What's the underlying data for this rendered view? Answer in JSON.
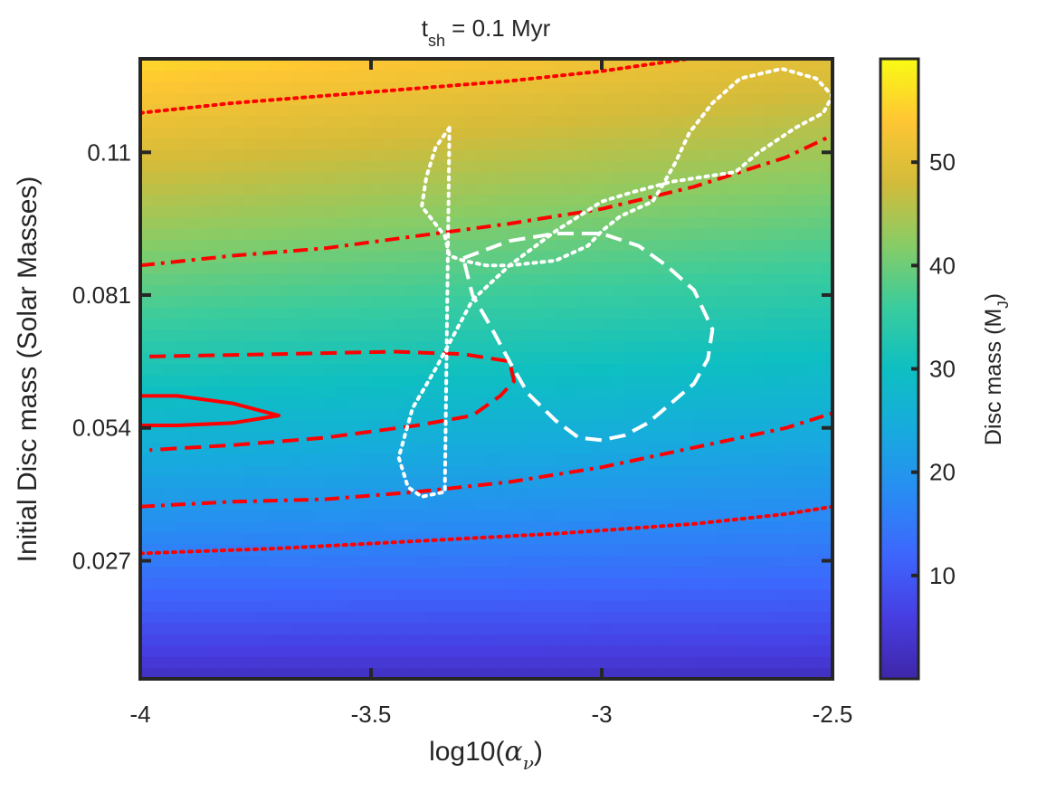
{
  "chart_data": {
    "type": "heatmap",
    "title": "t_sh = 0.1 Myr",
    "title_parts": {
      "main": "t",
      "sub": "sh",
      "rest": " = 0.1 Myr"
    },
    "xlabel": "log10(α_ν)",
    "xlabel_parts": {
      "pre": "log10(",
      "greek": "α",
      "sub": "ν",
      "post": ")"
    },
    "ylabel": "Initial Disc mass (Solar Masses)",
    "xlim": [
      -4,
      -2.5
    ],
    "ylim": [
      0.003,
      0.129
    ],
    "xticks": [
      -4,
      -3.5,
      -3,
      -2.5
    ],
    "xtick_labels": [
      "-4",
      "-3.5",
      "-3",
      "-2.5"
    ],
    "yticks": [
      0.027,
      0.054,
      0.081,
      0.11
    ],
    "ytick_labels": [
      "0.027",
      "0.054",
      "0.081",
      "0.11"
    ],
    "colorbar": {
      "label": "Disc mass (M_J)",
      "label_parts": {
        "main": "Disc mass (M",
        "sub": "J",
        "post": ")"
      },
      "range": [
        0,
        60
      ],
      "ticks": [
        10,
        20,
        30,
        40,
        50
      ],
      "tick_labels": [
        "10",
        "20",
        "30",
        "40",
        "50"
      ],
      "colormap": "parula"
    },
    "field_model": "disc mass rises with initial disc mass and falls slightly toward higher alpha; about 50-56 M_J at top-left, 5 M_J at bottom",
    "contours": [
      {
        "name": "red-dotted-upper",
        "color": "#ff0000",
        "style": "dotted",
        "x": [
          -4,
          -3.8,
          -3.6,
          -3.4,
          -3.2,
          -3.0,
          -2.85,
          -2.7,
          -2.6
        ],
        "y": [
          0.118,
          0.12,
          0.1215,
          0.123,
          0.1245,
          0.1265,
          0.1285,
          0.1305,
          0.132
        ]
      },
      {
        "name": "red-dashdot-upper",
        "color": "#ff0000",
        "style": "dashdot",
        "x": [
          -4,
          -3.8,
          -3.6,
          -3.4,
          -3.2,
          -3.0,
          -2.8,
          -2.6,
          -2.5
        ],
        "y": [
          0.087,
          0.089,
          0.0905,
          0.093,
          0.0955,
          0.0985,
          0.103,
          0.109,
          0.1135
        ]
      },
      {
        "name": "red-solid",
        "color": "#ff0000",
        "style": "solid",
        "x": [
          -4,
          -3.92,
          -3.8,
          -3.7,
          -3.8,
          -3.92,
          -4
        ],
        "y": [
          0.0605,
          0.0605,
          0.059,
          0.0565,
          0.055,
          0.0545,
          0.0545
        ]
      },
      {
        "name": "red-dashed",
        "color": "#ff0000",
        "style": "dashed",
        "x": [
          -3.98,
          -3.7,
          -3.45,
          -3.3,
          -3.2,
          -3.19,
          -3.22,
          -3.28,
          -3.4,
          -3.6,
          -3.8,
          -3.98
        ],
        "y": [
          0.0685,
          0.069,
          0.0695,
          0.069,
          0.0675,
          0.0635,
          0.0605,
          0.0565,
          0.0545,
          0.052,
          0.0505,
          0.0495
        ]
      },
      {
        "name": "red-dashdot-lower",
        "color": "#ff0000",
        "style": "dashdot",
        "x": [
          -4,
          -3.8,
          -3.6,
          -3.4,
          -3.2,
          -3.0,
          -2.8,
          -2.6,
          -2.5
        ],
        "y": [
          0.038,
          0.039,
          0.0395,
          0.041,
          0.043,
          0.046,
          0.05,
          0.054,
          0.057
        ]
      },
      {
        "name": "red-dotted-lower",
        "color": "#ff0000",
        "style": "dotted",
        "x": [
          -4,
          -3.7,
          -3.4,
          -3.1,
          -2.8,
          -2.6,
          -2.5
        ],
        "y": [
          0.0285,
          0.0295,
          0.031,
          0.0325,
          0.0345,
          0.0365,
          0.038
        ]
      },
      {
        "name": "white-dotted",
        "color": "#ffffff",
        "style": "dotted",
        "x": [
          -3.33,
          -3.36,
          -3.38,
          -3.39,
          -3.34,
          -3.33,
          -3.3,
          -3.25,
          -3.2,
          -3.1,
          -3.03,
          -3.0,
          -2.96,
          -2.89,
          -2.87,
          -2.84,
          -2.81,
          -2.76,
          -2.7,
          -2.61,
          -2.535,
          -2.5,
          -2.52,
          -2.58,
          -2.66,
          -2.71,
          -2.85,
          -2.93,
          -3.0,
          -3.1,
          -3.2,
          -3.28,
          -3.32,
          -3.36,
          -3.41,
          -3.44,
          -3.42,
          -3.39,
          -3.34,
          -3.33
        ],
        "y": [
          0.115,
          0.111,
          0.105,
          0.099,
          0.093,
          0.089,
          0.088,
          0.087,
          0.087,
          0.088,
          0.091,
          0.094,
          0.097,
          0.1,
          0.103,
          0.108,
          0.114,
          0.12,
          0.125,
          0.127,
          0.125,
          0.1215,
          0.118,
          0.115,
          0.11,
          0.106,
          0.104,
          0.102,
          0.1,
          0.094,
          0.087,
          0.08,
          0.073,
          0.066,
          0.058,
          0.048,
          0.042,
          0.04,
          0.041,
          0.115
        ]
      },
      {
        "name": "white-dashed",
        "color": "#ffffff",
        "style": "dashed",
        "x": [
          -3.3,
          -3.2,
          -3.1,
          -3.0,
          -2.92,
          -2.86,
          -2.8,
          -2.76,
          -2.77,
          -2.8,
          -2.85,
          -2.9,
          -2.95,
          -3.0,
          -3.05,
          -3.1,
          -3.16,
          -3.2,
          -3.24,
          -3.28,
          -3.3
        ],
        "y": [
          0.0885,
          0.092,
          0.0935,
          0.0935,
          0.091,
          0.087,
          0.082,
          0.074,
          0.068,
          0.063,
          0.059,
          0.055,
          0.0525,
          0.0515,
          0.052,
          0.0555,
          0.061,
          0.0675,
          0.0745,
          0.081,
          0.0885
        ]
      }
    ]
  }
}
